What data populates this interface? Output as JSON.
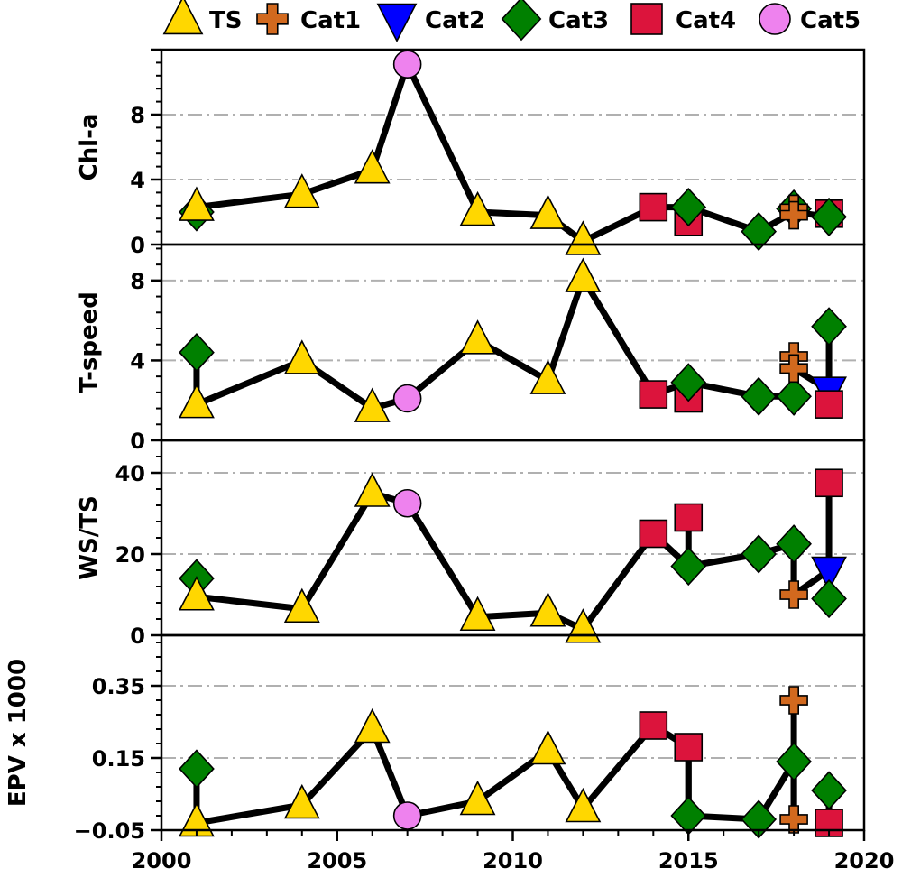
{
  "colors": {
    "TS": "#FFD700",
    "Cat1": "#D2691E",
    "Cat2": "#0000FF",
    "Cat3": "#008000",
    "Cat4": "#DC143C",
    "Cat5": "#EE82EE"
  },
  "chart_data": {
    "type": "line",
    "shared_x": {
      "range": [
        2000,
        2020
      ],
      "ticks": [
        2000,
        2005,
        2010,
        2015,
        2020
      ],
      "tick_labels": [
        "2000",
        "2005",
        "2010",
        "2015",
        "2020"
      ]
    },
    "legend": {
      "placement": "top",
      "entries": [
        {
          "name": "TS",
          "marker": "triangle-up"
        },
        {
          "name": "Cat1",
          "marker": "plus"
        },
        {
          "name": "Cat2",
          "marker": "triangle-down"
        },
        {
          "name": "Cat3",
          "marker": "diamond"
        },
        {
          "name": "Cat4",
          "marker": "square"
        },
        {
          "name": "Cat5",
          "marker": "circle"
        }
      ]
    },
    "panels": [
      {
        "ylabel": "Chl-a",
        "ylim": [
          0,
          12
        ],
        "yticks": [
          0,
          4,
          8
        ],
        "ytick_labels": [
          "0",
          "4",
          "8"
        ],
        "grid": [
          4,
          8
        ],
        "line": [
          [
            2001,
            2.3
          ],
          [
            2004,
            3.1
          ],
          [
            2006,
            4.6
          ],
          [
            2007,
            11.1
          ],
          [
            2009,
            2.0
          ],
          [
            2011,
            1.8
          ],
          [
            2012,
            0.2
          ],
          [
            2014,
            2.3
          ],
          [
            2015,
            2.3
          ],
          [
            2017,
            0.8
          ],
          [
            2018,
            2.0
          ],
          [
            2019,
            1.7
          ]
        ],
        "connectors": [
          [
            2001,
            2.3,
            2.0
          ],
          [
            2015,
            1.4,
            2.3
          ],
          [
            2018,
            1.9,
            2.2
          ],
          [
            2019,
            1.8,
            1.7
          ]
        ],
        "points": [
          {
            "x": 2001,
            "y": 2.0,
            "cat": "Cat3"
          },
          {
            "x": 2001,
            "y": 2.3,
            "cat": "TS"
          },
          {
            "x": 2004,
            "y": 3.1,
            "cat": "TS"
          },
          {
            "x": 2006,
            "y": 4.6,
            "cat": "TS"
          },
          {
            "x": 2007,
            "y": 11.1,
            "cat": "Cat5"
          },
          {
            "x": 2009,
            "y": 2.0,
            "cat": "TS"
          },
          {
            "x": 2011,
            "y": 1.8,
            "cat": "TS"
          },
          {
            "x": 2012,
            "y": 0.2,
            "cat": "TS"
          },
          {
            "x": 2014,
            "y": 2.3,
            "cat": "Cat4"
          },
          {
            "x": 2015,
            "y": 1.4,
            "cat": "Cat4"
          },
          {
            "x": 2015,
            "y": 2.3,
            "cat": "Cat3"
          },
          {
            "x": 2017,
            "y": 0.8,
            "cat": "Cat3"
          },
          {
            "x": 2018,
            "y": 2.2,
            "cat": "Cat3"
          },
          {
            "x": 2018,
            "y": 2.2,
            "cat": "Cat1"
          },
          {
            "x": 2018,
            "y": 1.8,
            "cat": "Cat1"
          },
          {
            "x": 2019,
            "y": 1.9,
            "cat": "Cat4"
          },
          {
            "x": 2019,
            "y": 1.7,
            "cat": "Cat3"
          }
        ]
      },
      {
        "ylabel": "T-speed",
        "ylim": [
          0,
          9.8
        ],
        "yticks": [
          0,
          4,
          8
        ],
        "ytick_labels": [
          "0",
          "4",
          "8"
        ],
        "grid": [
          4,
          8
        ],
        "line": [
          [
            2001,
            1.8
          ],
          [
            2004,
            4.0
          ],
          [
            2006,
            1.6
          ],
          [
            2007,
            2.1
          ],
          [
            2009,
            5.0
          ],
          [
            2011,
            3.0
          ],
          [
            2012,
            8.1
          ],
          [
            2014,
            2.3
          ],
          [
            2015,
            2.9
          ],
          [
            2017,
            2.2
          ],
          [
            2018,
            2.2
          ],
          [
            2018,
            3.6
          ],
          [
            2019,
            2.5
          ]
        ],
        "connectors": [
          [
            2001,
            1.8,
            4.4
          ],
          [
            2015,
            2.1,
            2.9
          ],
          [
            2018,
            2.2,
            4.2
          ],
          [
            2019,
            1.8,
            5.7
          ]
        ],
        "points": [
          {
            "x": 2001,
            "y": 4.4,
            "cat": "Cat3"
          },
          {
            "x": 2001,
            "y": 1.8,
            "cat": "TS"
          },
          {
            "x": 2004,
            "y": 4.0,
            "cat": "TS"
          },
          {
            "x": 2006,
            "y": 1.6,
            "cat": "TS"
          },
          {
            "x": 2007,
            "y": 2.1,
            "cat": "Cat5"
          },
          {
            "x": 2009,
            "y": 5.0,
            "cat": "TS"
          },
          {
            "x": 2011,
            "y": 3.0,
            "cat": "TS"
          },
          {
            "x": 2012,
            "y": 8.1,
            "cat": "TS"
          },
          {
            "x": 2014,
            "y": 2.3,
            "cat": "Cat4"
          },
          {
            "x": 2015,
            "y": 2.1,
            "cat": "Cat4"
          },
          {
            "x": 2015,
            "y": 2.9,
            "cat": "Cat3"
          },
          {
            "x": 2017,
            "y": 2.2,
            "cat": "Cat3"
          },
          {
            "x": 2018,
            "y": 2.2,
            "cat": "Cat3"
          },
          {
            "x": 2018,
            "y": 4.2,
            "cat": "Cat1"
          },
          {
            "x": 2018,
            "y": 3.6,
            "cat": "Cat1"
          },
          {
            "x": 2019,
            "y": 2.5,
            "cat": "Cat2"
          },
          {
            "x": 2019,
            "y": 1.8,
            "cat": "Cat4"
          },
          {
            "x": 2019,
            "y": 5.7,
            "cat": "Cat3"
          }
        ]
      },
      {
        "ylabel": "WS/TS",
        "ylim": [
          0,
          48
        ],
        "yticks": [
          0,
          20,
          40
        ],
        "ytick_labels": [
          "0",
          "20",
          "40"
        ],
        "grid": [
          20,
          40
        ],
        "line": [
          [
            2001,
            9.5
          ],
          [
            2004,
            6.5
          ],
          [
            2006,
            35.0
          ],
          [
            2007,
            32.5
          ],
          [
            2009,
            4.5
          ],
          [
            2011,
            5.5
          ],
          [
            2012,
            1.5
          ],
          [
            2014,
            25.0
          ],
          [
            2015,
            17.0
          ],
          [
            2017,
            20.0
          ],
          [
            2018,
            22.5
          ],
          [
            2018,
            10.0
          ],
          [
            2019,
            16.0
          ]
        ],
        "connectors": [
          [
            2001,
            9.5,
            14.0
          ],
          [
            2015,
            17.0,
            29.0
          ],
          [
            2018,
            10.0,
            22.5
          ],
          [
            2019,
            9.0,
            37.5
          ]
        ],
        "points": [
          {
            "x": 2001,
            "y": 14.0,
            "cat": "Cat3"
          },
          {
            "x": 2001,
            "y": 9.5,
            "cat": "TS"
          },
          {
            "x": 2004,
            "y": 6.5,
            "cat": "TS"
          },
          {
            "x": 2006,
            "y": 35.0,
            "cat": "TS"
          },
          {
            "x": 2007,
            "y": 32.5,
            "cat": "Cat5"
          },
          {
            "x": 2009,
            "y": 4.5,
            "cat": "TS"
          },
          {
            "x": 2011,
            "y": 5.5,
            "cat": "TS"
          },
          {
            "x": 2012,
            "y": 1.5,
            "cat": "TS"
          },
          {
            "x": 2014,
            "y": 25.0,
            "cat": "Cat4"
          },
          {
            "x": 2015,
            "y": 29.0,
            "cat": "Cat4"
          },
          {
            "x": 2015,
            "y": 17.0,
            "cat": "Cat3"
          },
          {
            "x": 2017,
            "y": 20.0,
            "cat": "Cat3"
          },
          {
            "x": 2018,
            "y": 22.5,
            "cat": "Cat3"
          },
          {
            "x": 2018,
            "y": 10.0,
            "cat": "Cat1"
          },
          {
            "x": 2019,
            "y": 16.0,
            "cat": "Cat2"
          },
          {
            "x": 2019,
            "y": 37.5,
            "cat": "Cat4"
          },
          {
            "x": 2019,
            "y": 9.0,
            "cat": "Cat3"
          }
        ]
      },
      {
        "ylabel": "EPV x 1000",
        "ylim": [
          -0.05,
          0.49
        ],
        "yticks": [
          -0.05,
          0.15,
          0.35
        ],
        "ytick_labels": [
          "−0.05",
          "0.15",
          "0.35"
        ],
        "grid": [
          0.15,
          0.35
        ],
        "line": [
          [
            2001,
            -0.03
          ],
          [
            2004,
            0.02
          ],
          [
            2006,
            0.23
          ],
          [
            2007,
            -0.01
          ],
          [
            2009,
            0.03
          ],
          [
            2011,
            0.17
          ],
          [
            2012,
            0.01
          ],
          [
            2014,
            0.24
          ],
          [
            2015,
            0.18
          ],
          [
            2015,
            -0.01
          ],
          [
            2017,
            -0.02
          ],
          [
            2018,
            0.14
          ],
          [
            2018,
            -0.02
          ]
        ],
        "connectors": [
          [
            2001,
            -0.03,
            0.12
          ],
          [
            2015,
            -0.01,
            0.18
          ],
          [
            2018,
            -0.02,
            0.31
          ],
          [
            2019,
            -0.03,
            0.06
          ]
        ],
        "points": [
          {
            "x": 2001,
            "y": 0.12,
            "cat": "Cat3"
          },
          {
            "x": 2001,
            "y": -0.03,
            "cat": "TS"
          },
          {
            "x": 2004,
            "y": 0.02,
            "cat": "TS"
          },
          {
            "x": 2006,
            "y": 0.23,
            "cat": "TS"
          },
          {
            "x": 2007,
            "y": -0.01,
            "cat": "Cat5"
          },
          {
            "x": 2009,
            "y": 0.03,
            "cat": "TS"
          },
          {
            "x": 2011,
            "y": 0.17,
            "cat": "TS"
          },
          {
            "x": 2012,
            "y": 0.01,
            "cat": "TS"
          },
          {
            "x": 2014,
            "y": 0.24,
            "cat": "Cat4"
          },
          {
            "x": 2015,
            "y": 0.18,
            "cat": "Cat4"
          },
          {
            "x": 2015,
            "y": -0.01,
            "cat": "Cat3"
          },
          {
            "x": 2017,
            "y": -0.02,
            "cat": "Cat3"
          },
          {
            "x": 2018,
            "y": 0.14,
            "cat": "Cat3"
          },
          {
            "x": 2018,
            "y": 0.31,
            "cat": "Cat1"
          },
          {
            "x": 2018,
            "y": -0.02,
            "cat": "Cat1"
          },
          {
            "x": 2019,
            "y": -0.03,
            "cat": "Cat4"
          },
          {
            "x": 2019,
            "y": 0.06,
            "cat": "Cat3"
          }
        ]
      }
    ]
  }
}
